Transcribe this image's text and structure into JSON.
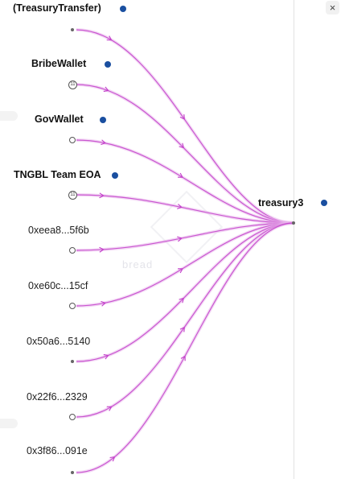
{
  "colors": {
    "edge": "#c23fc9",
    "edge_glow": "#e9b8ec",
    "dot": "#1a4fa0"
  },
  "close_icon": "close-icon",
  "watermark": "bread",
  "target": {
    "label": "treasury3"
  },
  "sources": [
    {
      "label": "(TreasuryTransfer)",
      "bold": true,
      "node": "dot",
      "badge": ""
    },
    {
      "label": "BribeWallet",
      "bold": true,
      "node": "badge",
      "badge": "11"
    },
    {
      "label": "GovWallet",
      "bold": true,
      "node": "ring",
      "badge": ""
    },
    {
      "label": "TNGBL Team EOA",
      "bold": true,
      "node": "badge",
      "badge": "11"
    },
    {
      "label": "0xeea8...5f6b",
      "bold": false,
      "node": "ring",
      "badge": ""
    },
    {
      "label": "0xe60c...15cf",
      "bold": false,
      "node": "ring",
      "badge": ""
    },
    {
      "label": "0x50a6...5140",
      "bold": false,
      "node": "dot",
      "badge": ""
    },
    {
      "label": "0x22f6...2329",
      "bold": false,
      "node": "ring",
      "badge": ""
    },
    {
      "label": "0x3f86...091e",
      "bold": false,
      "node": "dot",
      "badge": ""
    }
  ]
}
